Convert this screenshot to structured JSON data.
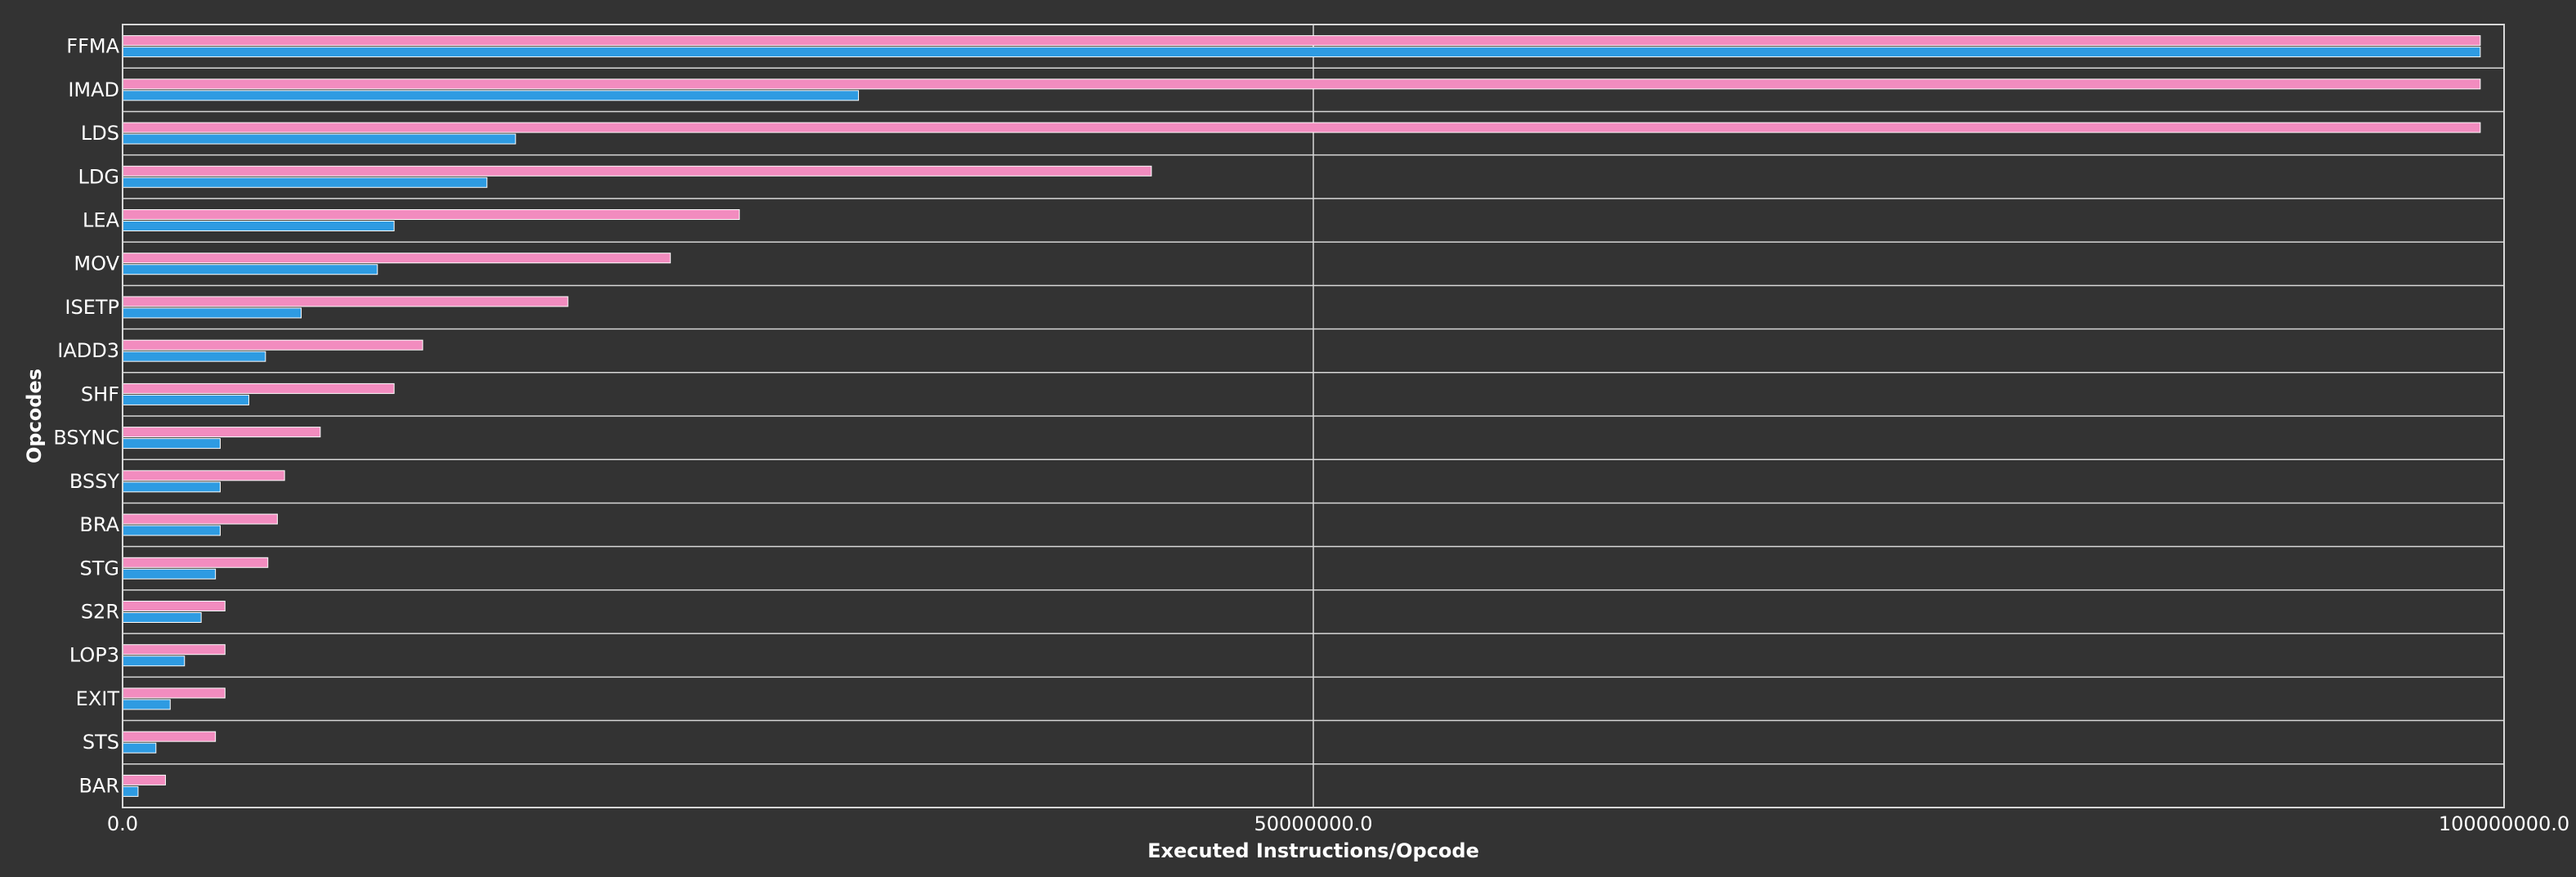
{
  "chart_data": {
    "type": "bar",
    "orientation": "horizontal",
    "title": "",
    "xlabel": "Executed Instructions/Opcode",
    "ylabel": "Opcodes",
    "xlim": [
      0,
      100000000
    ],
    "x_ticks": [
      0,
      50000000,
      100000000
    ],
    "x_tick_labels": [
      "0.0",
      "50000000.0",
      "100000000.0"
    ],
    "grid": "vertical lines at x ticks",
    "legend": "none",
    "categories": [
      "FFMA",
      "IMAD",
      "LDS",
      "LDG",
      "LEA",
      "MOV",
      "ISETP",
      "IADD3",
      "SHF",
      "BSYNC",
      "BSSY",
      "BRA",
      "STG",
      "S2R",
      "LOP3",
      "EXIT",
      "STS",
      "BAR"
    ],
    "series": [
      {
        "color": "#f28cbf",
        "values": [
          99000000,
          99000000,
          99000000,
          43200000,
          25900000,
          23000000,
          18700000,
          12600000,
          11400000,
          8300000,
          6800000,
          6500000,
          6100000,
          4300000,
          4300000,
          4300000,
          3900000,
          1800000
        ]
      },
      {
        "color": "#2e9be2",
        "values": [
          99000000,
          30900000,
          16500000,
          15300000,
          11400000,
          10700000,
          7500000,
          6000000,
          5300000,
          4100000,
          4100000,
          4100000,
          3900000,
          3300000,
          2600000,
          2000000,
          1400000,
          650000
        ]
      }
    ]
  }
}
